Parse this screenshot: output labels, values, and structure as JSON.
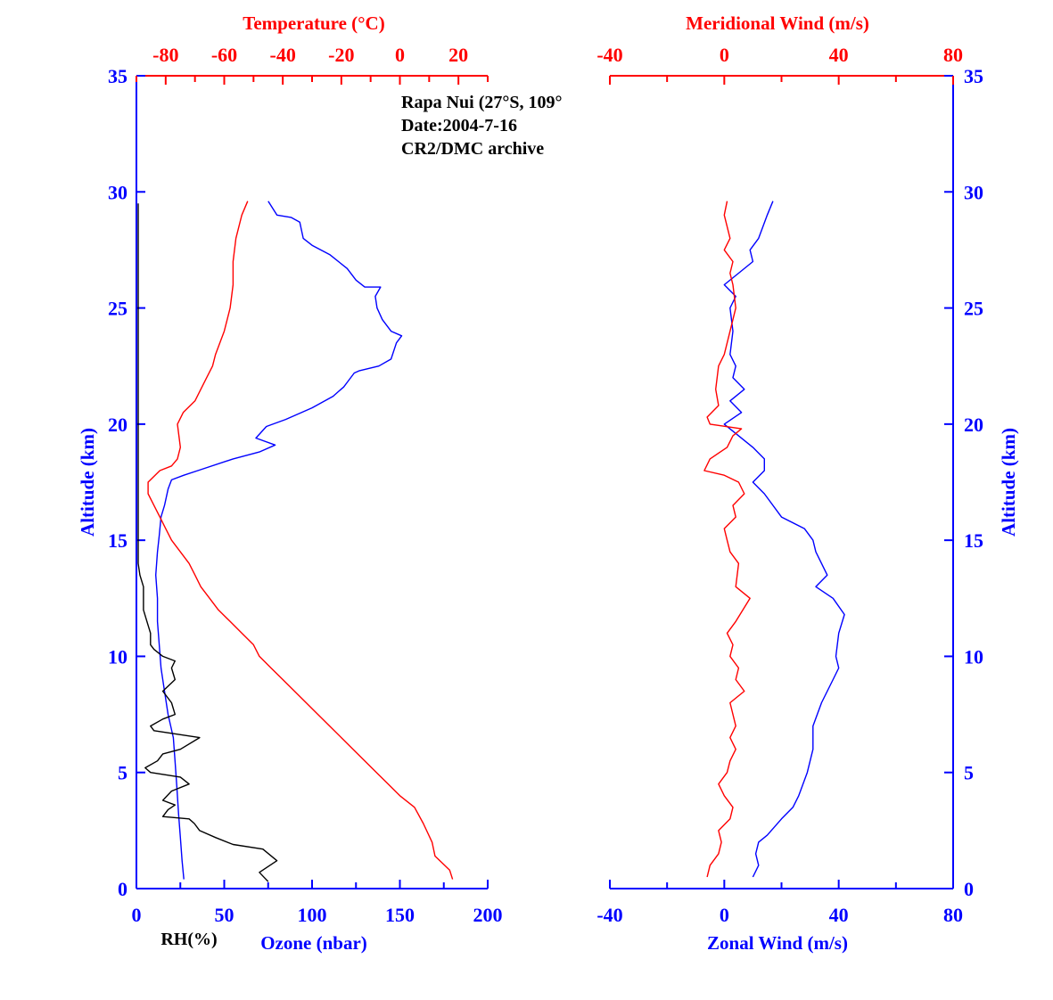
{
  "annotation": [
    "Rapa Nui (27°S, 109°",
    "Date:2004-7-16",
    "CR2/DMC archive"
  ],
  "colors": {
    "blue": "#0000ff",
    "red": "#ff0000",
    "black": "#000000"
  },
  "chart_data": [
    {
      "type": "line",
      "name": "left-panel",
      "ylabel": "Altitude (km)",
      "ylim": [
        0,
        35
      ],
      "yticks": [
        0,
        5,
        10,
        15,
        20,
        25,
        30,
        35
      ],
      "grid": false,
      "axes": {
        "bottom": {
          "label": "Ozone (nbar)",
          "range": [
            0,
            200
          ],
          "ticks": [
            0,
            50,
            100,
            150,
            200
          ],
          "minor_step": 25
        },
        "bottom_secondary_label": "RH(%)",
        "top": {
          "label": "Temperature (°C)",
          "range": [
            -90,
            30
          ],
          "ticks": [
            -80,
            -60,
            -40,
            -20,
            0,
            20
          ],
          "minor_step": 10
        }
      },
      "series": [
        {
          "name": "Ozone",
          "axis": "bottom",
          "color": "#0000ff",
          "points": [
            [
              27,
              0.4
            ],
            [
              26,
              1.2
            ],
            [
              25,
              2.2
            ],
            [
              24,
              3.2
            ],
            [
              23,
              4.4
            ],
            [
              22,
              5.5
            ],
            [
              21,
              6.5
            ],
            [
              18,
              7.5
            ],
            [
              16,
              8.5
            ],
            [
              14,
              9.5
            ],
            [
              13,
              10.5
            ],
            [
              12,
              11.5
            ],
            [
              12,
              12.5
            ],
            [
              11,
              13.5
            ],
            [
              12,
              14.5
            ],
            [
              13,
              15.2
            ],
            [
              14,
              16
            ],
            [
              16,
              16.5
            ],
            [
              18,
              17.2
            ],
            [
              20,
              17.6
            ],
            [
              27,
              17.8
            ],
            [
              35,
              18
            ],
            [
              55,
              18.5
            ],
            [
              70,
              18.8
            ],
            [
              79,
              19.1
            ],
            [
              68,
              19.4
            ],
            [
              74,
              19.9
            ],
            [
              85,
              20.2
            ],
            [
              100,
              20.7
            ],
            [
              112,
              21.2
            ],
            [
              115,
              21.4
            ],
            [
              118,
              21.6
            ],
            [
              120,
              21.8
            ],
            [
              124,
              22.2
            ],
            [
              127,
              22.3
            ],
            [
              138,
              22.5
            ],
            [
              145,
              22.8
            ],
            [
              148,
              23.5
            ],
            [
              151,
              23.8
            ],
            [
              145,
              24
            ],
            [
              140,
              24.5
            ],
            [
              137,
              25
            ],
            [
              136,
              25.5
            ],
            [
              139,
              25.9
            ],
            [
              130,
              25.9
            ],
            [
              125,
              26.2
            ],
            [
              120,
              26.7
            ],
            [
              110,
              27.3
            ],
            [
              100,
              27.7
            ],
            [
              95,
              28
            ],
            [
              93,
              28.7
            ],
            [
              88,
              28.9
            ],
            [
              80,
              29
            ],
            [
              75,
              29.6
            ]
          ]
        },
        {
          "name": "Temperature",
          "axis": "top",
          "color": "#ff0000",
          "points": [
            [
              18,
              0.4
            ],
            [
              17,
              0.8
            ],
            [
              12,
              1.4
            ],
            [
              11,
              2
            ],
            [
              8,
              2.8
            ],
            [
              5,
              3.5
            ],
            [
              0,
              4
            ],
            [
              -4,
              4.5
            ],
            [
              -8,
              5
            ],
            [
              -12,
              5.5
            ],
            [
              -16,
              6
            ],
            [
              -20,
              6.5
            ],
            [
              -24,
              7
            ],
            [
              -28,
              7.5
            ],
            [
              -32,
              8
            ],
            [
              -36,
              8.5
            ],
            [
              -40,
              9
            ],
            [
              -44,
              9.5
            ],
            [
              -48,
              10
            ],
            [
              -50,
              10.5
            ],
            [
              -54,
              11
            ],
            [
              -58,
              11.5
            ],
            [
              -62,
              12
            ],
            [
              -65,
              12.5
            ],
            [
              -68,
              13
            ],
            [
              -70,
              13.5
            ],
            [
              -72,
              14
            ],
            [
              -75,
              14.5
            ],
            [
              -78,
              15
            ],
            [
              -80,
              15.5
            ],
            [
              -82,
              16
            ],
            [
              -84,
              16.5
            ],
            [
              -86,
              17
            ],
            [
              -86,
              17.5
            ],
            [
              -82,
              18
            ],
            [
              -78,
              18.2
            ],
            [
              -76,
              18.5
            ],
            [
              -75,
              19
            ],
            [
              -76,
              20
            ],
            [
              -74,
              20.5
            ],
            [
              -70,
              21
            ],
            [
              -68,
              21.5
            ],
            [
              -66,
              22
            ],
            [
              -64,
              22.5
            ],
            [
              -63,
              23
            ],
            [
              -60,
              24
            ],
            [
              -58,
              25
            ],
            [
              -57,
              26
            ],
            [
              -57,
              27
            ],
            [
              -56,
              28
            ],
            [
              -54,
              29
            ],
            [
              -52,
              29.6
            ]
          ]
        },
        {
          "name": "RH",
          "axis": "bottom",
          "color": "#000000",
          "points": [
            [
              75,
              0.3
            ],
            [
              70,
              0.7
            ],
            [
              80,
              1.2
            ],
            [
              72,
              1.7
            ],
            [
              55,
              1.9
            ],
            [
              45,
              2.2
            ],
            [
              36,
              2.5
            ],
            [
              33,
              2.8
            ],
            [
              30,
              3
            ],
            [
              15,
              3.1
            ],
            [
              18,
              3.4
            ],
            [
              22,
              3.6
            ],
            [
              15,
              3.8
            ],
            [
              20,
              4.2
            ],
            [
              30,
              4.5
            ],
            [
              25,
              4.8
            ],
            [
              8,
              5
            ],
            [
              5,
              5.2
            ],
            [
              12,
              5.5
            ],
            [
              15,
              5.8
            ],
            [
              25,
              6
            ],
            [
              36,
              6.5
            ],
            [
              10,
              6.8
            ],
            [
              8,
              7
            ],
            [
              15,
              7.3
            ],
            [
              22,
              7.5
            ],
            [
              20,
              8
            ],
            [
              15,
              8.5
            ],
            [
              22,
              9
            ],
            [
              20,
              9.5
            ],
            [
              22,
              9.8
            ],
            [
              15,
              10
            ],
            [
              10,
              10.3
            ],
            [
              8,
              10.5
            ],
            [
              8,
              11
            ],
            [
              6,
              11.5
            ],
            [
              4,
              12
            ],
            [
              4,
              13
            ],
            [
              2,
              13.5
            ],
            [
              1,
              14
            ],
            [
              1,
              20
            ],
            [
              1,
              29.5
            ]
          ]
        }
      ]
    },
    {
      "type": "line",
      "name": "right-panel",
      "ylabel": "Altitude (km)",
      "ylim": [
        0,
        35
      ],
      "yticks": [
        0,
        5,
        10,
        15,
        20,
        25,
        30,
        35
      ],
      "grid": false,
      "axes": {
        "bottom": {
          "label": "Zonal Wind (m/s)",
          "range": [
            -40,
            80
          ],
          "ticks": [
            -40,
            0,
            40,
            80
          ],
          "minor_step": 20
        },
        "top": {
          "label": "Meridional Wind (m/s)",
          "range": [
            -40,
            80
          ],
          "ticks": [
            -40,
            0,
            40,
            80
          ],
          "minor_step": 20
        }
      },
      "series": [
        {
          "name": "Zonal Wind",
          "axis": "bottom",
          "color": "#0000ff",
          "points": [
            [
              10,
              0.5
            ],
            [
              12,
              1
            ],
            [
              11,
              1.5
            ],
            [
              12,
              2
            ],
            [
              15,
              2.3
            ],
            [
              20,
              3
            ],
            [
              24,
              3.5
            ],
            [
              26,
              4
            ],
            [
              29,
              5
            ],
            [
              30,
              5.5
            ],
            [
              31,
              6
            ],
            [
              31,
              7
            ],
            [
              34,
              8
            ],
            [
              38,
              9
            ],
            [
              40,
              9.5
            ],
            [
              39,
              10
            ],
            [
              40,
              11
            ],
            [
              42,
              11.8
            ],
            [
              38,
              12.5
            ],
            [
              32,
              13
            ],
            [
              36,
              13.5
            ],
            [
              34,
              14
            ],
            [
              32,
              14.5
            ],
            [
              31,
              15
            ],
            [
              28,
              15.5
            ],
            [
              20,
              16
            ],
            [
              14,
              17
            ],
            [
              10,
              17.5
            ],
            [
              14,
              18
            ],
            [
              14,
              18.5
            ],
            [
              10,
              19
            ],
            [
              0,
              20
            ],
            [
              6,
              20.5
            ],
            [
              2,
              21
            ],
            [
              7,
              21.5
            ],
            [
              3,
              22
            ],
            [
              4,
              22.5
            ],
            [
              2,
              23
            ],
            [
              3,
              24
            ],
            [
              2,
              25
            ],
            [
              4,
              25.5
            ],
            [
              0,
              26
            ],
            [
              5,
              26.5
            ],
            [
              10,
              27
            ],
            [
              9,
              27.5
            ],
            [
              12,
              28
            ],
            [
              15,
              29
            ],
            [
              17,
              29.6
            ]
          ]
        },
        {
          "name": "Meridional Wind",
          "axis": "top",
          "color": "#ff0000",
          "points": [
            [
              -6,
              0.5
            ],
            [
              -5,
              1
            ],
            [
              -2,
              1.5
            ],
            [
              -1,
              2
            ],
            [
              -2,
              2.5
            ],
            [
              2,
              3
            ],
            [
              3,
              3.5
            ],
            [
              0,
              4
            ],
            [
              -2,
              4.5
            ],
            [
              1,
              5
            ],
            [
              2,
              5.5
            ],
            [
              4,
              6
            ],
            [
              2,
              6.5
            ],
            [
              4,
              7
            ],
            [
              2,
              8
            ],
            [
              7,
              8.5
            ],
            [
              4,
              9
            ],
            [
              5,
              9.5
            ],
            [
              2,
              10
            ],
            [
              3,
              10.5
            ],
            [
              1,
              11
            ],
            [
              4,
              11.5
            ],
            [
              9,
              12.5
            ],
            [
              4,
              13
            ],
            [
              5,
              14
            ],
            [
              2,
              14.5
            ],
            [
              1,
              15
            ],
            [
              0,
              15.5
            ],
            [
              4,
              16
            ],
            [
              3,
              16.5
            ],
            [
              7,
              17
            ],
            [
              5,
              17.5
            ],
            [
              0,
              17.8
            ],
            [
              -7,
              18
            ],
            [
              -5,
              18.5
            ],
            [
              1,
              19
            ],
            [
              3,
              19.5
            ],
            [
              6,
              19.8
            ],
            [
              -5,
              20
            ],
            [
              -6,
              20.3
            ],
            [
              -2,
              20.8
            ],
            [
              -3,
              21.5
            ],
            [
              -2,
              22.5
            ],
            [
              0,
              23
            ],
            [
              2,
              24
            ],
            [
              4,
              25
            ],
            [
              3,
              26
            ],
            [
              2,
              26.5
            ],
            [
              3,
              27
            ],
            [
              0,
              27.5
            ],
            [
              2,
              28
            ],
            [
              0,
              29
            ],
            [
              1,
              29.6
            ]
          ]
        }
      ]
    }
  ]
}
